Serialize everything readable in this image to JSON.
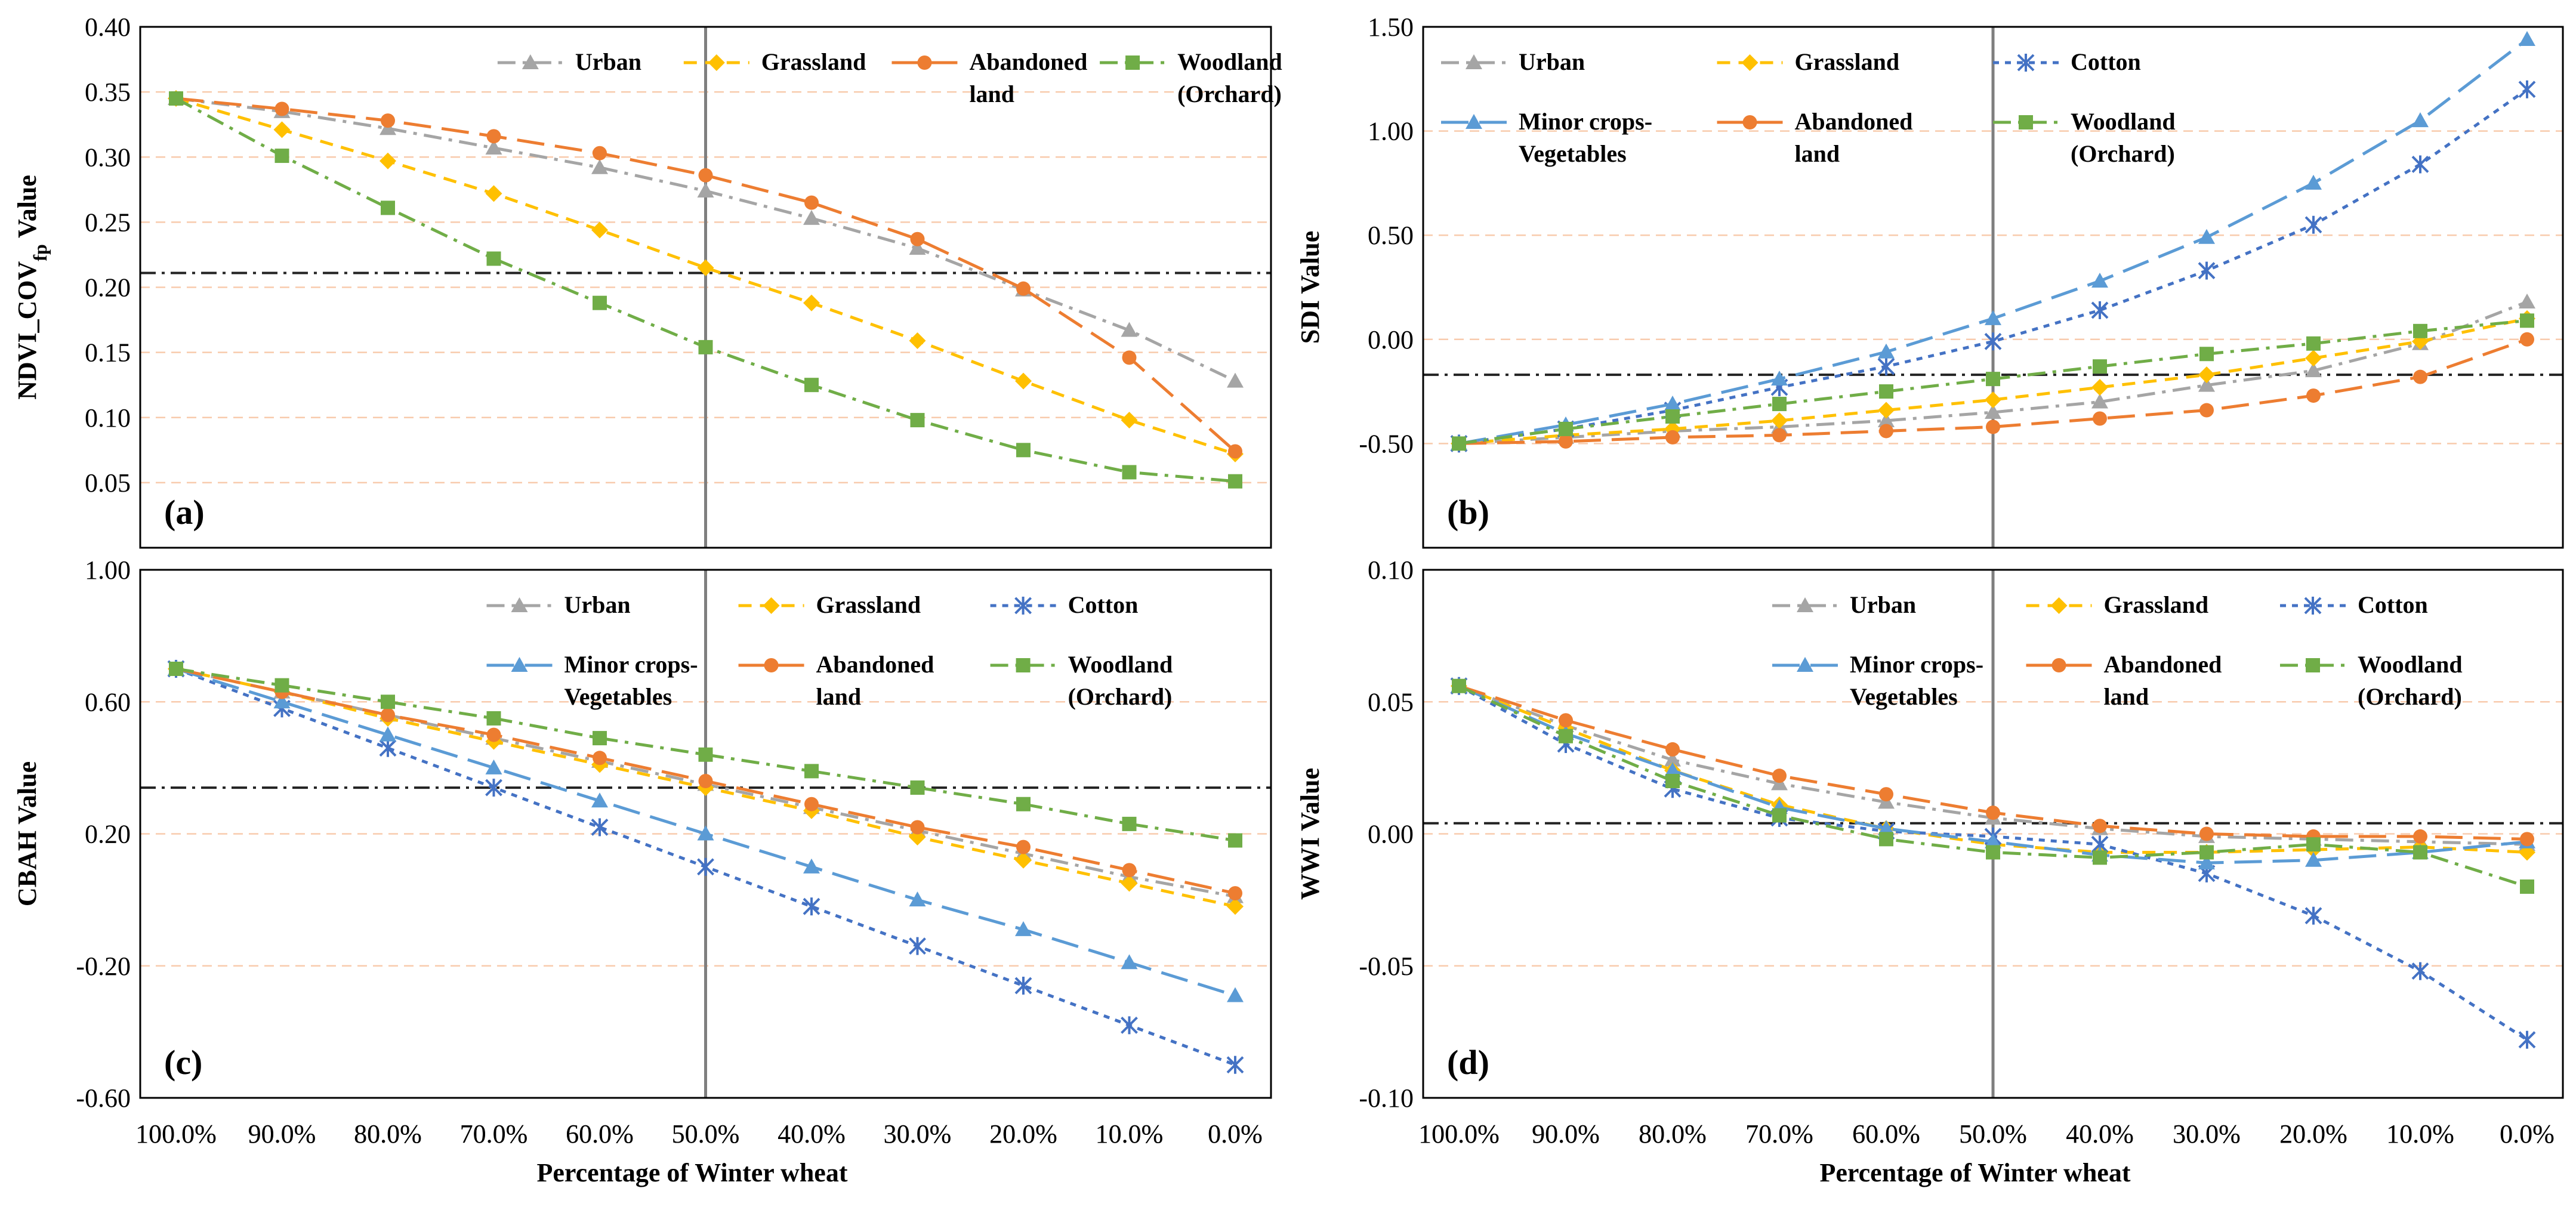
{
  "figure": {
    "xlabel": "Percentage of Winter wheat",
    "categories": [
      "100.0%",
      "90.0%",
      "80.0%",
      "70.0%",
      "60.0%",
      "50.0%",
      "40.0%",
      "30.0%",
      "20.0%",
      "10.0%",
      "0.0%"
    ]
  },
  "colors": {
    "urban": "#a5a5a5",
    "grassland": "#ffc000",
    "abandoned": "#ed7d31",
    "woodland": "#70ad47",
    "cotton": "#4472c4",
    "minor": "#5b9bd5",
    "threshold": "#222222",
    "divider": "#7f7f7f",
    "grid": "#f8cbad"
  },
  "chart_data": [
    {
      "type": "line",
      "label": "(a)",
      "ylabel": "NDVI_COV",
      "ylabel_sub": "fp",
      "ylabel_suffix": " Value",
      "ylim": [
        0.0,
        0.4
      ],
      "yticks": [
        "0.05",
        "0.10",
        "0.15",
        "0.20",
        "0.25",
        "0.30",
        "0.35",
        "0.40"
      ],
      "ytick_values": [
        0.05,
        0.1,
        0.15,
        0.2,
        0.25,
        0.3,
        0.35,
        0.4
      ],
      "threshold": 0.211,
      "divider_category": "50.0%",
      "series": [
        {
          "name": "Urban",
          "key": "urban",
          "marker": "triangle",
          "dash": "dashdot",
          "values": [
            0.345,
            0.335,
            0.322,
            0.307,
            0.292,
            0.274,
            0.253,
            0.23,
            0.198,
            0.167,
            0.128
          ]
        },
        {
          "name": "Grassland",
          "key": "grassland",
          "marker": "diamond",
          "dash": "dash",
          "values": [
            0.345,
            0.321,
            0.297,
            0.272,
            0.244,
            0.215,
            0.188,
            0.159,
            0.128,
            0.098,
            0.072
          ]
        },
        {
          "name": "Abandoned land",
          "key": "abandoned",
          "marker": "circle",
          "dash": "longdash",
          "values": [
            0.345,
            0.337,
            0.328,
            0.316,
            0.303,
            0.286,
            0.265,
            0.237,
            0.199,
            0.146,
            0.074
          ]
        },
        {
          "name": "Woodland (Orchard)",
          "key": "woodland",
          "marker": "square",
          "dash": "dashdot",
          "values": [
            0.345,
            0.301,
            0.261,
            0.222,
            0.188,
            0.154,
            0.125,
            0.098,
            0.075,
            0.058,
            0.051
          ]
        }
      ],
      "legend": [
        {
          "lines": [
            "Urban"
          ],
          "key": "urban"
        },
        {
          "lines": [
            "Grassland"
          ],
          "key": "grassland"
        },
        {
          "lines": [
            "Abandoned",
            "land"
          ],
          "key": "abandoned"
        },
        {
          "lines": [
            "Woodland",
            "(Orchard)"
          ],
          "key": "woodland"
        }
      ]
    },
    {
      "type": "line",
      "label": "(b)",
      "ylabel": "SDI Value",
      "ylim": [
        -1.0,
        1.5
      ],
      "yticks": [
        "-0.50",
        "0.00",
        "0.50",
        "1.00",
        "1.50"
      ],
      "ytick_values": [
        -0.5,
        0.0,
        0.5,
        1.0,
        1.5
      ],
      "threshold": -0.17,
      "divider_category": "50.0%",
      "series": [
        {
          "name": "Urban",
          "key": "urban",
          "marker": "triangle",
          "dash": "dashdot",
          "values": [
            -0.5,
            -0.47,
            -0.44,
            -0.42,
            -0.39,
            -0.35,
            -0.3,
            -0.22,
            -0.15,
            -0.02,
            0.18
          ]
        },
        {
          "name": "Grassland",
          "key": "grassland",
          "marker": "diamond",
          "dash": "dash",
          "values": [
            -0.5,
            -0.46,
            -0.43,
            -0.39,
            -0.34,
            -0.29,
            -0.23,
            -0.17,
            -0.09,
            -0.01,
            0.1
          ]
        },
        {
          "name": "Cotton",
          "key": "cotton",
          "marker": "star",
          "dash": "dot",
          "values": [
            -0.5,
            -0.43,
            -0.34,
            -0.23,
            -0.13,
            -0.01,
            0.14,
            0.33,
            0.55,
            0.84,
            1.2
          ]
        },
        {
          "name": "Minor crops-Vegetables",
          "key": "minor",
          "marker": "triangle",
          "dash": "longdash",
          "values": [
            -0.5,
            -0.41,
            -0.31,
            -0.19,
            -0.06,
            0.1,
            0.28,
            0.49,
            0.75,
            1.05,
            1.44
          ]
        },
        {
          "name": "Abandoned land",
          "key": "abandoned",
          "marker": "circle",
          "dash": "longdash",
          "values": [
            -0.5,
            -0.49,
            -0.47,
            -0.46,
            -0.44,
            -0.42,
            -0.38,
            -0.34,
            -0.27,
            -0.18,
            0.0
          ]
        },
        {
          "name": "Woodland (Orchard)",
          "key": "woodland",
          "marker": "square",
          "dash": "dashdot",
          "values": [
            -0.5,
            -0.43,
            -0.37,
            -0.31,
            -0.25,
            -0.19,
            -0.13,
            -0.07,
            -0.02,
            0.04,
            0.09
          ]
        }
      ],
      "legend": [
        {
          "lines": [
            "Urban"
          ],
          "key": "urban"
        },
        {
          "lines": [
            "Grassland"
          ],
          "key": "grassland"
        },
        {
          "lines": [
            "Cotton"
          ],
          "key": "cotton"
        },
        {
          "lines": [
            "Minor crops-",
            "Vegetables"
          ],
          "key": "minor"
        },
        {
          "lines": [
            "Abandoned",
            "land"
          ],
          "key": "abandoned"
        },
        {
          "lines": [
            "Woodland",
            "(Orchard)"
          ],
          "key": "woodland"
        }
      ]
    },
    {
      "type": "line",
      "label": "(c)",
      "ylabel": "CBAH Value",
      "ylim": [
        -0.6,
        1.0
      ],
      "yticks": [
        "-0.60",
        "-0.20",
        "0.20",
        "0.60",
        "1.00"
      ],
      "ytick_values": [
        -0.6,
        -0.2,
        0.2,
        0.6,
        1.0
      ],
      "threshold": 0.34,
      "divider_category": "50.0%",
      "series": [
        {
          "name": "Urban",
          "key": "urban",
          "marker": "triangle",
          "dash": "dashdot",
          "values": [
            0.7,
            0.63,
            0.56,
            0.49,
            0.42,
            0.35,
            0.28,
            0.21,
            0.14,
            0.07,
            0.01
          ]
        },
        {
          "name": "Grassland",
          "key": "grassland",
          "marker": "diamond",
          "dash": "dash",
          "values": [
            0.7,
            0.63,
            0.55,
            0.48,
            0.41,
            0.34,
            0.27,
            0.19,
            0.12,
            0.05,
            -0.02
          ]
        },
        {
          "name": "Cotton",
          "key": "cotton",
          "marker": "star",
          "dash": "dot",
          "values": [
            0.7,
            0.58,
            0.46,
            0.34,
            0.22,
            0.1,
            -0.02,
            -0.14,
            -0.26,
            -0.38,
            -0.5
          ]
        },
        {
          "name": "Minor crops-Vegetables",
          "key": "minor",
          "marker": "triangle",
          "dash": "longdash",
          "values": [
            0.7,
            0.6,
            0.5,
            0.4,
            0.3,
            0.2,
            0.1,
            0.0,
            -0.09,
            -0.19,
            -0.29
          ]
        },
        {
          "name": "Abandoned land",
          "key": "abandoned",
          "marker": "circle",
          "dash": "longdash",
          "values": [
            0.7,
            0.63,
            0.56,
            0.5,
            0.43,
            0.36,
            0.29,
            0.22,
            0.16,
            0.09,
            0.02
          ]
        },
        {
          "name": "Woodland (Orchard)",
          "key": "woodland",
          "marker": "square",
          "dash": "dashdot",
          "values": [
            0.7,
            0.65,
            0.6,
            0.55,
            0.49,
            0.44,
            0.39,
            0.34,
            0.29,
            0.23,
            0.18
          ]
        }
      ],
      "legend": [
        {
          "lines": [
            "Urban"
          ],
          "key": "urban"
        },
        {
          "lines": [
            "Grassland"
          ],
          "key": "grassland"
        },
        {
          "lines": [
            "Cotton"
          ],
          "key": "cotton"
        },
        {
          "lines": [
            "Minor crops-",
            "Vegetables"
          ],
          "key": "minor"
        },
        {
          "lines": [
            "Abandoned",
            "land"
          ],
          "key": "abandoned"
        },
        {
          "lines": [
            "Woodland",
            "(Orchard)"
          ],
          "key": "woodland"
        }
      ]
    },
    {
      "type": "line",
      "label": "(d)",
      "ylabel": "WWI Value",
      "ylim": [
        -0.1,
        0.1
      ],
      "yticks": [
        "-0.10",
        "-0.05",
        "0.00",
        "0.05",
        "0.10"
      ],
      "ytick_values": [
        -0.1,
        -0.05,
        0.0,
        0.05,
        0.1
      ],
      "threshold": 0.004,
      "divider_category": "50.0%",
      "series": [
        {
          "name": "Urban",
          "key": "urban",
          "marker": "triangle",
          "dash": "dashdot",
          "values": [
            0.056,
            0.041,
            0.028,
            0.019,
            0.012,
            0.006,
            0.002,
            -0.001,
            -0.002,
            -0.003,
            -0.004
          ]
        },
        {
          "name": "Grassland",
          "key": "grassland",
          "marker": "diamond",
          "dash": "dash",
          "values": [
            0.056,
            0.04,
            0.024,
            0.011,
            0.002,
            -0.004,
            -0.007,
            -0.007,
            -0.006,
            -0.005,
            -0.007
          ]
        },
        {
          "name": "Cotton",
          "key": "cotton",
          "marker": "star",
          "dash": "dot",
          "values": [
            0.056,
            0.034,
            0.017,
            0.006,
            0.001,
            -0.001,
            -0.004,
            -0.015,
            -0.031,
            -0.052,
            -0.078
          ]
        },
        {
          "name": "Minor crops-Vegetables",
          "key": "minor",
          "marker": "triangle",
          "dash": "longdash",
          "values": [
            0.056,
            0.038,
            0.024,
            0.01,
            0.002,
            -0.003,
            -0.008,
            -0.011,
            -0.01,
            -0.007,
            -0.003
          ]
        },
        {
          "name": "Abandoned land",
          "key": "abandoned",
          "marker": "circle",
          "dash": "longdash",
          "values": [
            0.056,
            0.043,
            0.032,
            0.022,
            0.015,
            0.008,
            0.003,
            0.0,
            -0.001,
            -0.001,
            -0.002
          ]
        },
        {
          "name": "Woodland (Orchard)",
          "key": "woodland",
          "marker": "square",
          "dash": "dashdot",
          "values": [
            0.056,
            0.037,
            0.02,
            0.007,
            -0.002,
            -0.007,
            -0.009,
            -0.007,
            -0.004,
            -0.007,
            -0.02
          ]
        }
      ],
      "legend": [
        {
          "lines": [
            "Urban"
          ],
          "key": "urban"
        },
        {
          "lines": [
            "Grassland"
          ],
          "key": "grassland"
        },
        {
          "lines": [
            "Cotton"
          ],
          "key": "cotton"
        },
        {
          "lines": [
            "Minor crops-",
            "Vegetables"
          ],
          "key": "minor"
        },
        {
          "lines": [
            "Abandoned",
            "land"
          ],
          "key": "abandoned"
        },
        {
          "lines": [
            "Woodland",
            "(Orchard)"
          ],
          "key": "woodland"
        }
      ]
    }
  ]
}
